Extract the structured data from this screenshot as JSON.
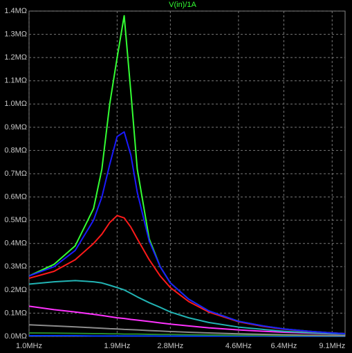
{
  "chart_data": {
    "type": "line",
    "title": "V(in)/1A",
    "title_color": "#33ff33",
    "x": [
      1.0,
      1.2,
      1.4,
      1.6,
      1.7,
      1.8,
      1.9,
      2.0,
      2.1,
      2.2,
      2.4,
      2.6,
      2.8,
      3.2,
      3.7,
      4.6,
      5.5,
      6.4,
      7.7,
      9.1,
      10
    ],
    "xlim": [
      1.0,
      10
    ],
    "x_log": true,
    "xticks": [
      {
        "value": 1.0,
        "label": "1.0MHz"
      },
      {
        "value": 1.9,
        "label": "1.9MHz"
      },
      {
        "value": 2.8,
        "label": "2.8MHz"
      },
      {
        "value": 4.6,
        "label": "4.6MHz"
      },
      {
        "value": 6.4,
        "label": "6.4MHz"
      },
      {
        "value": 9.1,
        "label": "9.1MHz"
      }
    ],
    "ylim": [
      0,
      1.4
    ],
    "yticks": [
      {
        "value": 0,
        "label": "0.0MΩ"
      },
      {
        "value": 0.1,
        "label": "0.1MΩ"
      },
      {
        "value": 0.2,
        "label": "0.2MΩ"
      },
      {
        "value": 0.3,
        "label": "0.3MΩ"
      },
      {
        "value": 0.4,
        "label": "0.4MΩ"
      },
      {
        "value": 0.5,
        "label": "0.5MΩ"
      },
      {
        "value": 0.6,
        "label": "0.6MΩ"
      },
      {
        "value": 0.7,
        "label": "0.7MΩ"
      },
      {
        "value": 0.8,
        "label": "0.8MΩ"
      },
      {
        "value": 0.9,
        "label": "0.9MΩ"
      },
      {
        "value": 1.0,
        "label": "1.0MΩ"
      },
      {
        "value": 1.1,
        "label": "1.1MΩ"
      },
      {
        "value": 1.2,
        "label": "1.2MΩ"
      },
      {
        "value": 1.3,
        "label": "1.3MΩ"
      },
      {
        "value": 1.4,
        "label": "1.4MΩ"
      }
    ],
    "grid": true,
    "series": [
      {
        "color": "#003bff",
        "values": [
          0.003,
          0.003,
          0.003,
          0.002,
          0.002,
          0.002,
          0.002,
          0.002,
          0.002,
          0.002,
          0.002,
          0.001,
          0.001,
          0.001,
          0.001,
          0.001,
          0.001,
          0,
          0,
          0,
          0
        ]
      },
      {
        "color": "#2a8a2a",
        "values": [
          0.015,
          0.014,
          0.013,
          0.012,
          0.012,
          0.011,
          0.011,
          0.01,
          0.01,
          0.01,
          0.009,
          0.008,
          0.008,
          0.007,
          0.006,
          0.005,
          0.004,
          0.003,
          0.003,
          0.002,
          0.002
        ]
      },
      {
        "color": "#8c8c8c",
        "values": [
          0.05,
          0.045,
          0.041,
          0.037,
          0.035,
          0.033,
          0.032,
          0.03,
          0.029,
          0.028,
          0.025,
          0.023,
          0.021,
          0.018,
          0.015,
          0.011,
          0.009,
          0.007,
          0.005,
          0.004,
          0.003
        ]
      },
      {
        "color": "#ff33ff",
        "values": [
          0.13,
          0.115,
          0.105,
          0.095,
          0.09,
          0.085,
          0.08,
          0.077,
          0.073,
          0.07,
          0.064,
          0.058,
          0.053,
          0.045,
          0.037,
          0.028,
          0.022,
          0.018,
          0.014,
          0.011,
          0.01
        ]
      },
      {
        "color": "#22b4b4",
        "values": [
          0.225,
          0.235,
          0.24,
          0.235,
          0.23,
          0.22,
          0.21,
          0.2,
          0.185,
          0.17,
          0.145,
          0.125,
          0.105,
          0.08,
          0.06,
          0.04,
          0.03,
          0.022,
          0.016,
          0.012,
          0.01
        ]
      },
      {
        "color": "#ff1a1a",
        "values": [
          0.25,
          0.28,
          0.33,
          0.4,
          0.44,
          0.49,
          0.52,
          0.51,
          0.47,
          0.42,
          0.33,
          0.26,
          0.21,
          0.15,
          0.105,
          0.063,
          0.043,
          0.031,
          0.021,
          0.015,
          0.012
        ]
      },
      {
        "color": "#33ff33",
        "values": [
          0.26,
          0.31,
          0.39,
          0.55,
          0.72,
          1.0,
          1.2,
          1.38,
          1.05,
          0.72,
          0.42,
          0.3,
          0.23,
          0.16,
          0.11,
          0.065,
          0.045,
          0.032,
          0.022,
          0.015,
          0.012
        ]
      },
      {
        "color": "#1a1aff",
        "values": [
          0.26,
          0.3,
          0.37,
          0.5,
          0.6,
          0.74,
          0.86,
          0.88,
          0.78,
          0.62,
          0.41,
          0.3,
          0.23,
          0.16,
          0.11,
          0.065,
          0.045,
          0.032,
          0.022,
          0.015,
          0.012
        ]
      }
    ]
  }
}
